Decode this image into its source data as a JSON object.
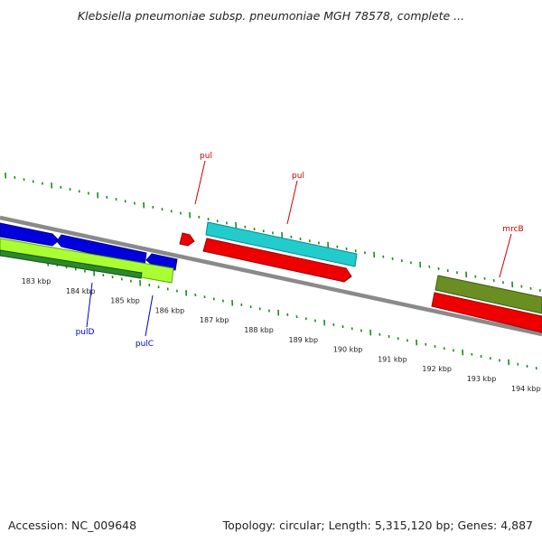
{
  "title": "Klebsiella pneumoniae subsp. pneumoniae MGH 78578, complete ...",
  "footer": {
    "accession": "Accession: NC_009648",
    "stats": "Topology: circular; Length: 5,315,120 bp; Genes: 4,887"
  },
  "colors": {
    "backbone": "#808080",
    "ticks": "#1a8a1a",
    "forward_label": "#cc0000",
    "reverse_label": "#0000bb",
    "blue": "#0000dd",
    "cyan": "#22cccc",
    "red": "#ee0000",
    "lime": "#aaff33",
    "darkgreen": "#2a8a2a",
    "olive": "#6b8e23"
  },
  "scale": {
    "kbp_labels": [
      "183 kbp",
      "184 kbp",
      "185 kbp",
      "186 kbp",
      "187 kbp",
      "188 kbp",
      "189 kbp",
      "190 kbp",
      "191 kbp",
      "192 kbp",
      "193 kbp",
      "194 kbp"
    ]
  },
  "gene_labels": {
    "pul_a": "pul",
    "pul_b": "pul",
    "mrcB": "mrcB",
    "pulD": "pulD",
    "pulC": "pulC"
  }
}
